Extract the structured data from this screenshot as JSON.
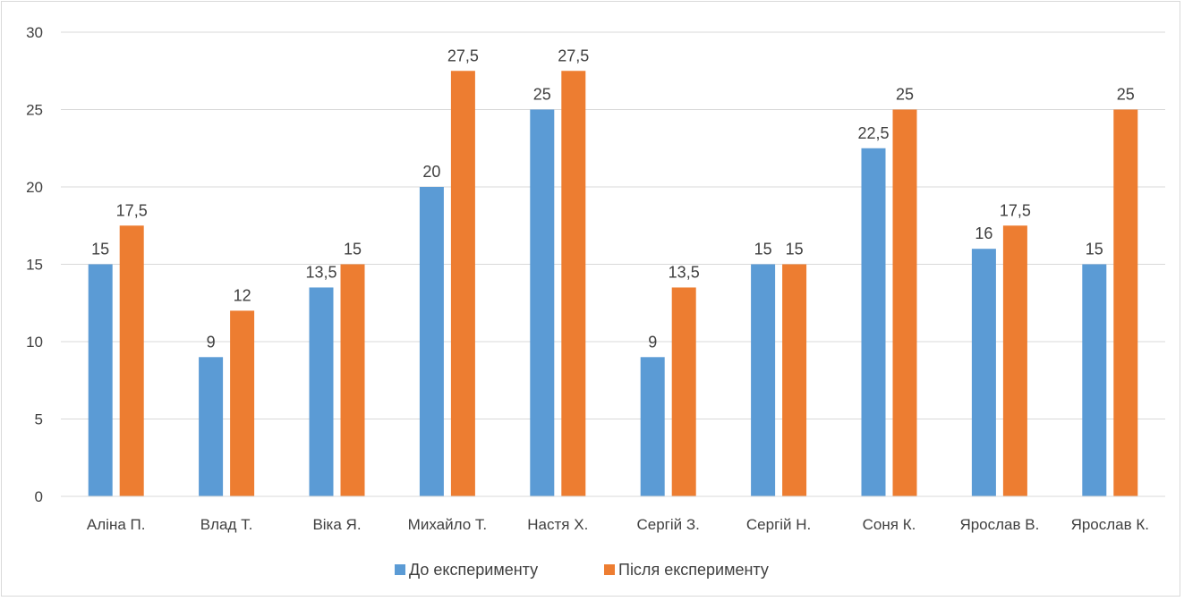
{
  "chart_data": {
    "type": "bar",
    "title": "",
    "xlabel": "",
    "ylabel": "",
    "categories": [
      "Аліна П.",
      "Влад Т.",
      "Віка Я.",
      "Михайло Т.",
      "Настя Х.",
      "Сергій З.",
      "Сергій Н.",
      "Соня К.",
      "Ярослав В.",
      "Ярослав К."
    ],
    "series": [
      {
        "name": "До експерименту",
        "color": "#5b9bd5",
        "values": [
          15,
          9,
          13.5,
          20,
          25,
          9,
          15,
          22.5,
          16,
          15
        ]
      },
      {
        "name": "Після експерименту",
        "color": "#ed7d31",
        "values": [
          17.5,
          12,
          15,
          27.5,
          27.5,
          13.5,
          15,
          25,
          17.5,
          25
        ]
      }
    ],
    "ylim": [
      0,
      30
    ],
    "yticks": [
      0,
      5,
      10,
      15,
      20,
      25,
      30
    ],
    "decimal_separator": ",",
    "grid": true,
    "data_labels": true,
    "legend_position": "bottom"
  }
}
